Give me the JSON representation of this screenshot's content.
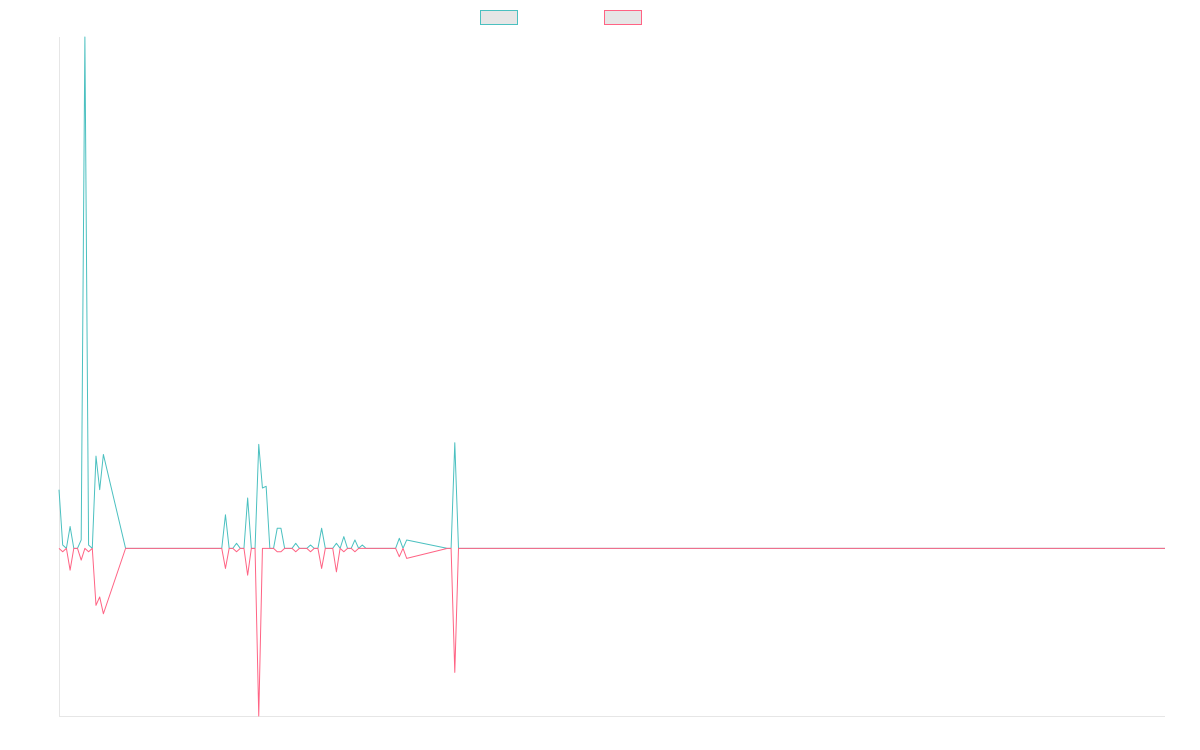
{
  "chart_data": {
    "type": "line",
    "title": "",
    "xlabel": "",
    "ylabel": "",
    "ylim": [
      -1.0,
      3.05
    ],
    "xlim": [
      0,
      299
    ],
    "grid": false,
    "legend": "top-center",
    "x": [
      0,
      1,
      2,
      3,
      4,
      5,
      6,
      7,
      8,
      9,
      10,
      11,
      12,
      18,
      44,
      45,
      46,
      47,
      48,
      49,
      50,
      51,
      52,
      53,
      54,
      55,
      56,
      57,
      58,
      59,
      60,
      61,
      62,
      63,
      64,
      65,
      66,
      67,
      68,
      69,
      70,
      71,
      72,
      73,
      74,
      75,
      76,
      77,
      78,
      79,
      80,
      81,
      82,
      83,
      84,
      85,
      86,
      87,
      88,
      89,
      90,
      91,
      92,
      93,
      94,
      105,
      106,
      107,
      108,
      109,
      299
    ],
    "series": [
      {
        "color": "#4bc0c0",
        "values": [
          0.35,
          0.02,
          0.0,
          0.13,
          0.0,
          0.0,
          0.05,
          3.05,
          0.02,
          0.0,
          0.55,
          0.35,
          0.56,
          0.0,
          0.0,
          0.2,
          0.0,
          0.0,
          0.03,
          0.0,
          0.0,
          0.3,
          0.0,
          0.0,
          0.62,
          0.36,
          0.37,
          0.0,
          0.0,
          0.12,
          0.12,
          0.0,
          0.0,
          0.0,
          0.03,
          0.0,
          0.0,
          0.0,
          0.02,
          0.0,
          0.0,
          0.12,
          0.0,
          0.0,
          0.0,
          0.03,
          0.0,
          0.07,
          0.0,
          0.0,
          0.05,
          0.0,
          0.02,
          0.0,
          0.0,
          0.0,
          0.0,
          0.0,
          0.0,
          0.0,
          0.0,
          0.0,
          0.06,
          0.0,
          0.05,
          0.0,
          0.0,
          0.63,
          0.0,
          0.0,
          0.0
        ]
      },
      {
        "color": "#ff6384",
        "values": [
          0.0,
          -0.02,
          0.0,
          -0.13,
          0.0,
          0.0,
          -0.07,
          0.0,
          -0.02,
          0.0,
          -0.34,
          -0.29,
          -0.39,
          0.0,
          0.0,
          -0.12,
          0.0,
          0.0,
          -0.02,
          0.0,
          0.0,
          -0.16,
          0.0,
          0.0,
          -1.0,
          0.0,
          0.0,
          0.0,
          0.0,
          -0.02,
          -0.02,
          0.0,
          0.0,
          0.0,
          -0.02,
          0.0,
          0.0,
          0.0,
          -0.02,
          0.0,
          0.0,
          -0.12,
          0.0,
          0.0,
          0.0,
          -0.14,
          0.0,
          -0.02,
          0.0,
          0.0,
          -0.02,
          0.0,
          0.0,
          0.0,
          0.0,
          0.0,
          0.0,
          0.0,
          0.0,
          0.0,
          0.0,
          0.0,
          -0.05,
          0.0,
          -0.06,
          0.0,
          0.0,
          -0.74,
          0.0,
          0.0,
          0.0
        ]
      }
    ]
  }
}
